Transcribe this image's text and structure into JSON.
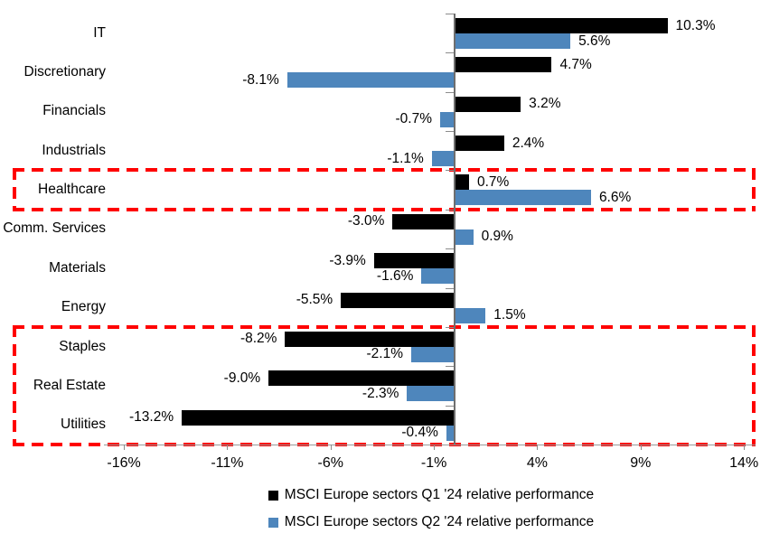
{
  "chart_data": {
    "type": "bar",
    "orientation": "horizontal",
    "title": "",
    "xlabel": "",
    "ylabel": "",
    "categories": [
      "IT",
      "Discretionary",
      "Financials",
      "Industrials",
      "Healthcare",
      "Comm. Services",
      "Materials",
      "Energy",
      "Staples",
      "Real Estate",
      "Utilities"
    ],
    "series": [
      {
        "name": "MSCI Europe sectors Q1 '24 relative performance",
        "color": "#000000",
        "values": [
          10.3,
          4.7,
          3.2,
          2.4,
          0.7,
          -3.0,
          -3.9,
          -5.5,
          -8.2,
          -9.0,
          -13.2
        ],
        "labels": [
          "10.3%",
          "4.7%",
          "3.2%",
          "2.4%",
          "0.7%",
          "-3.0%",
          "-3.9%",
          "-5.5%",
          "-8.2%",
          "-9.0%",
          "-13.2%"
        ]
      },
      {
        "name": "MSCI Europe sectors Q2 '24 relative performance",
        "color": "#4E86BC",
        "values": [
          5.6,
          -8.1,
          -0.7,
          -1.1,
          6.6,
          0.9,
          -1.6,
          1.5,
          -2.1,
          -2.3,
          -0.4
        ],
        "labels": [
          "5.6%",
          "-8.1%",
          "-0.7%",
          "-1.1%",
          "6.6%",
          "0.9%",
          "-1.6%",
          "1.5%",
          "-2.1%",
          "-2.3%",
          "-0.4%"
        ]
      }
    ],
    "x_axis": {
      "range": [
        -16.8,
        14.5
      ],
      "ticks": [
        {
          "value": -16,
          "label": "-16%"
        },
        {
          "value": -11,
          "label": "-11%"
        },
        {
          "value": -6,
          "label": "-6%"
        },
        {
          "value": -1,
          "label": "-1%"
        },
        {
          "value": 4,
          "label": "4%"
        },
        {
          "value": 9,
          "label": "9%"
        },
        {
          "value": 14,
          "label": "14%"
        }
      ],
      "grid": false
    },
    "legend_position": "bottom",
    "highlight_color": "#FF0000",
    "highlights": [
      {
        "categories": [
          "Healthcare"
        ]
      },
      {
        "categories": [
          "Staples",
          "Real Estate",
          "Utilities"
        ]
      }
    ]
  }
}
